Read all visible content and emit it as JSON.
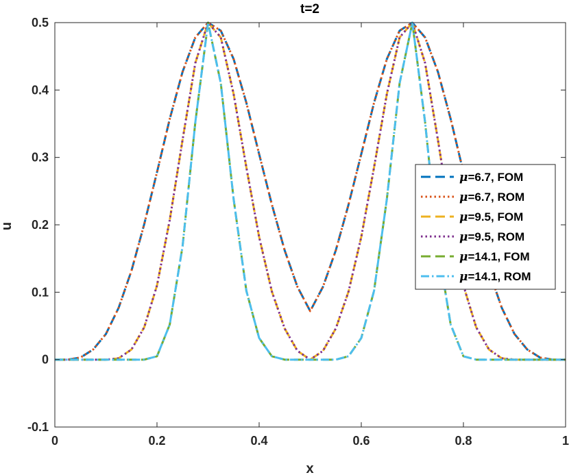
{
  "chart_data": {
    "type": "line",
    "title": "t=2",
    "xlabel": "x",
    "ylabel": "u",
    "xlim": [
      0,
      1
    ],
    "ylim": [
      -0.1,
      0.5
    ],
    "xticks": [
      "0",
      "0.2",
      "0.4",
      "0.6",
      "0.8",
      "1"
    ],
    "yticks": [
      "-0.1",
      "0",
      "0.1",
      "0.2",
      "0.3",
      "0.4",
      "0.5"
    ],
    "grid": false,
    "legend_position": "right",
    "x": [
      0,
      0.025,
      0.05,
      0.075,
      0.1,
      0.125,
      0.15,
      0.175,
      0.2,
      0.225,
      0.25,
      0.275,
      0.3,
      0.325,
      0.35,
      0.375,
      0.4,
      0.425,
      0.45,
      0.475,
      0.5,
      0.525,
      0.55,
      0.575,
      0.6,
      0.625,
      0.65,
      0.675,
      0.7,
      0.725,
      0.75,
      0.775,
      0.8,
      0.825,
      0.85,
      0.875,
      0.9,
      0.925,
      0.95,
      0.975,
      1
    ],
    "series": [
      {
        "name": "=6.7, FOM",
        "mu": "μ",
        "color": "#0072BD",
        "dash": "dashed",
        "values": [
          0,
          0,
          0.003,
          0.015,
          0.038,
          0.077,
          0.132,
          0.201,
          0.278,
          0.357,
          0.427,
          0.478,
          0.5,
          0.488,
          0.446,
          0.381,
          0.305,
          0.23,
          0.162,
          0.108,
          0.072,
          0.108,
          0.162,
          0.23,
          0.305,
          0.381,
          0.446,
          0.488,
          0.5,
          0.478,
          0.427,
          0.357,
          0.278,
          0.201,
          0.132,
          0.077,
          0.038,
          0.015,
          0.003,
          0,
          0
        ]
      },
      {
        "name": "=6.7, ROM",
        "mu": "μ",
        "color": "#D95319",
        "dash": "dotted",
        "values": [
          0,
          0,
          0.003,
          0.015,
          0.038,
          0.077,
          0.132,
          0.201,
          0.278,
          0.357,
          0.427,
          0.478,
          0.5,
          0.488,
          0.446,
          0.381,
          0.305,
          0.23,
          0.162,
          0.108,
          0.072,
          0.108,
          0.162,
          0.23,
          0.305,
          0.381,
          0.446,
          0.488,
          0.5,
          0.478,
          0.427,
          0.357,
          0.278,
          0.201,
          0.132,
          0.077,
          0.038,
          0.015,
          0.003,
          0,
          0
        ]
      },
      {
        "name": "=9.5, FOM",
        "mu": "μ",
        "color": "#EDB120",
        "dash": "dashed",
        "values": [
          0,
          0,
          0,
          0,
          0,
          0.002,
          0.015,
          0.048,
          0.11,
          0.207,
          0.326,
          0.44,
          0.5,
          0.478,
          0.394,
          0.285,
          0.182,
          0.101,
          0.046,
          0.013,
          0,
          0.013,
          0.046,
          0.101,
          0.182,
          0.285,
          0.394,
          0.478,
          0.5,
          0.44,
          0.326,
          0.207,
          0.11,
          0.048,
          0.015,
          0.002,
          0,
          0,
          0,
          0,
          0
        ]
      },
      {
        "name": "=9.5, ROM",
        "mu": "μ",
        "color": "#7E2F8E",
        "dash": "dotted",
        "values": [
          0,
          0,
          0,
          0,
          0,
          0.002,
          0.015,
          0.048,
          0.11,
          0.207,
          0.326,
          0.44,
          0.5,
          0.478,
          0.394,
          0.285,
          0.182,
          0.101,
          0.046,
          0.013,
          0,
          0.013,
          0.046,
          0.101,
          0.182,
          0.285,
          0.394,
          0.478,
          0.5,
          0.44,
          0.326,
          0.207,
          0.11,
          0.048,
          0.015,
          0.002,
          0,
          0,
          0,
          0,
          0
        ]
      },
      {
        "name": "=14.1, FOM",
        "mu": "μ",
        "color": "#77AC30",
        "dash": "dashed",
        "values": [
          0,
          0,
          0,
          0,
          0,
          0,
          0,
          0,
          0.005,
          0.052,
          0.168,
          0.352,
          0.5,
          0.41,
          0.238,
          0.102,
          0.032,
          0.005,
          0,
          0,
          0,
          0,
          0,
          0.005,
          0.032,
          0.102,
          0.238,
          0.41,
          0.5,
          0.352,
          0.168,
          0.052,
          0.005,
          0,
          0,
          0,
          0,
          0,
          0,
          0,
          0
        ]
      },
      {
        "name": "=14.1, ROM",
        "mu": "μ",
        "color": "#4DBEEE",
        "dash": "dashdot",
        "values": [
          0,
          0,
          0,
          0,
          0,
          0,
          0,
          0,
          0.005,
          0.052,
          0.168,
          0.352,
          0.5,
          0.41,
          0.238,
          0.102,
          0.032,
          0.005,
          0,
          0,
          0,
          0,
          0,
          0.005,
          0.032,
          0.102,
          0.238,
          0.41,
          0.5,
          0.352,
          0.168,
          0.052,
          0.005,
          0,
          0,
          0,
          0,
          0,
          0,
          0,
          0
        ]
      }
    ]
  }
}
